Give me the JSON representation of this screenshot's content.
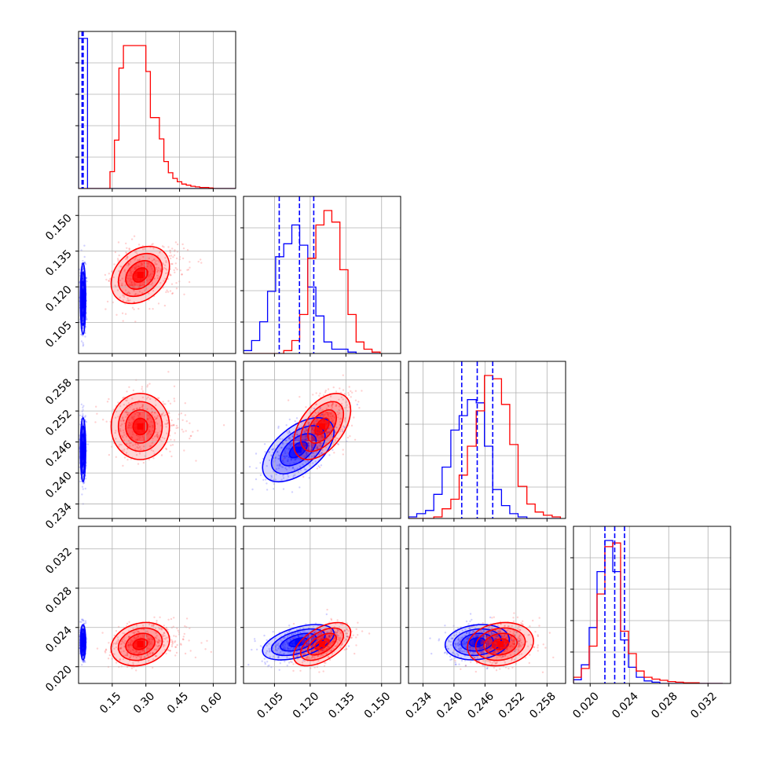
{
  "chart_data": {
    "type": "corner",
    "parameters": [
      {
        "ticks": [
          0.15,
          0.3,
          0.45,
          0.6
        ],
        "tick_labels": [
          "0.15",
          "0.30",
          "0.45",
          "0.60"
        ],
        "range": [
          0.0,
          0.7
        ]
      },
      {
        "ticks": [
          0.105,
          0.12,
          0.135,
          0.15
        ],
        "tick_labels": [
          "0.105",
          "0.120",
          "0.135",
          "0.150"
        ],
        "range": [
          0.092,
          0.158
        ]
      },
      {
        "ticks": [
          0.234,
          0.24,
          0.246,
          0.252,
          0.258
        ],
        "tick_labels": [
          "0.234",
          "0.240",
          "0.246",
          "0.252",
          "0.258"
        ],
        "range": [
          0.2312,
          0.2616
        ]
      },
      {
        "ticks": [
          0.02,
          0.024,
          0.028,
          0.032
        ],
        "tick_labels": [
          "0.020",
          "0.024",
          "0.028",
          "0.032"
        ],
        "range": [
          0.0183,
          0.0343
        ]
      }
    ],
    "series": [
      {
        "color": "#0000ff",
        "mean": [
          0.02,
          0.115,
          0.2445,
          0.0225
        ],
        "sd": [
          0.006,
          0.0075,
          0.0031,
          0.0009
        ],
        "quantiles": [
          [
            0.0155,
            0.0175,
            0.0205
          ],
          [
            0.107,
            0.1155,
            0.1215
          ],
          [
            0.2415,
            0.2445,
            0.2475
          ],
          [
            0.0215,
            0.0225,
            0.0235
          ]
        ],
        "correlations": {
          "1-2": 0.55,
          "1-3": 0.5,
          "2-3": 0.15
        }
      },
      {
        "color": "#ff0000",
        "mean": [
          0.275,
          0.125,
          0.249,
          0.0223
        ],
        "sd": [
          0.065,
          0.006,
          0.0032,
          0.0011
        ],
        "quantiles": [],
        "correlations": {
          "0-1": 0.3,
          "0-3": 0.2,
          "1-2": 0.5,
          "1-3": 0.55,
          "2-3": 0.15
        }
      }
    ],
    "histograms": [
      {
        "edges": [
          0.0,
          0.02,
          0.04,
          0.06,
          0.08,
          0.1,
          0.12,
          0.14,
          0.16,
          0.18,
          0.2,
          0.22,
          0.24,
          0.26,
          0.28,
          0.3,
          0.32,
          0.34,
          0.36,
          0.38,
          0.4,
          0.42,
          0.44,
          0.46,
          0.48,
          0.5,
          0.52,
          0.54,
          0.56,
          0.58,
          0.6,
          0.62,
          0.64,
          0.66,
          0.68,
          0.7
        ],
        "counts": [
          [
            1500,
            30,
            0,
            0,
            0,
            0,
            0,
            0,
            0,
            0,
            0,
            0,
            0,
            0,
            0,
            0,
            0,
            0,
            0,
            0,
            0,
            0,
            0,
            0,
            0,
            0,
            0,
            0,
            0,
            0,
            0,
            0,
            0,
            0,
            0
          ],
          [
            0,
            0,
            0,
            0,
            0,
            0,
            0,
            1.5,
            4.3,
            10.7,
            12.7,
            12.7,
            12.7,
            12.7,
            12.7,
            10.4,
            6.3,
            6.3,
            4.4,
            2.4,
            1.4,
            0.9,
            0.6,
            0.4,
            0.3,
            0.2,
            0.15,
            0.1,
            0.1,
            0.05,
            0,
            0,
            0,
            0,
            0
          ]
        ]
      },
      {
        "edges": [
          0.092,
          0.0954,
          0.0988,
          0.1021,
          0.1055,
          0.1089,
          0.1123,
          0.1156,
          0.119,
          0.1224,
          0.1258,
          0.1291,
          0.1325,
          0.1359,
          0.1393,
          0.1426,
          0.146,
          0.1494
        ],
        "counts": [
          [
            0.2,
            0.9,
            2.2,
            4.3,
            6.7,
            7.6,
            8.9,
            7.5,
            4.6,
            2.6,
            0.8,
            0.3,
            0.3,
            0.1,
            0,
            0,
            0
          ],
          [
            0,
            0,
            0,
            0,
            0,
            0.2,
            0.9,
            2.7,
            6.6,
            8.9,
            9.9,
            9.1,
            5.8,
            2.7,
            0.8,
            0.3,
            0.1
          ]
        ]
      },
      {
        "edges": [
          0.2312,
          0.2328,
          0.2345,
          0.2361,
          0.2377,
          0.2394,
          0.241,
          0.2426,
          0.2443,
          0.2459,
          0.2475,
          0.2492,
          0.2508,
          0.2524,
          0.2541,
          0.2557,
          0.2573,
          0.259,
          0.2606
        ],
        "counts": [
          [
            0.1,
            0.3,
            0.5,
            1.5,
            3.2,
            5.5,
            6.4,
            7.4,
            7.2,
            4.5,
            1.8,
            0.8,
            0.3,
            0.1,
            0,
            0,
            0,
            0
          ],
          [
            0,
            0,
            0,
            0.1,
            0.6,
            1.2,
            2.7,
            4.5,
            6.7,
            8.9,
            8.7,
            7.1,
            4.6,
            2.0,
            0.9,
            0.4,
            0.2,
            0.1
          ]
        ]
      },
      {
        "edges": [
          0.0183,
          0.0191,
          0.0199,
          0.0207,
          0.0215,
          0.0223,
          0.0231,
          0.0239,
          0.0247,
          0.0255,
          0.0263,
          0.0271,
          0.0279,
          0.0287,
          0.0295,
          0.0303,
          0.0311,
          0.0319,
          0.0327,
          0.0335
        ],
        "counts": [
          [
            0.3,
            1.5,
            4.5,
            9.0,
            11.5,
            9.0,
            3.5,
            1.3,
            0.5,
            0.2,
            0.1,
            0,
            0,
            0,
            0,
            0,
            0,
            0,
            0
          ],
          [
            0.5,
            1.2,
            3.0,
            7.2,
            11.0,
            11.3,
            4.2,
            2.4,
            1.0,
            0.5,
            0.35,
            0.25,
            0.15,
            0.1,
            0.05,
            0.05,
            0,
            0,
            0
          ]
        ]
      }
    ],
    "contour_levels": [
      0.5,
      1.0,
      1.5,
      2.0
    ],
    "grid": true,
    "title": "",
    "xlabel": "",
    "ylabel": ""
  }
}
